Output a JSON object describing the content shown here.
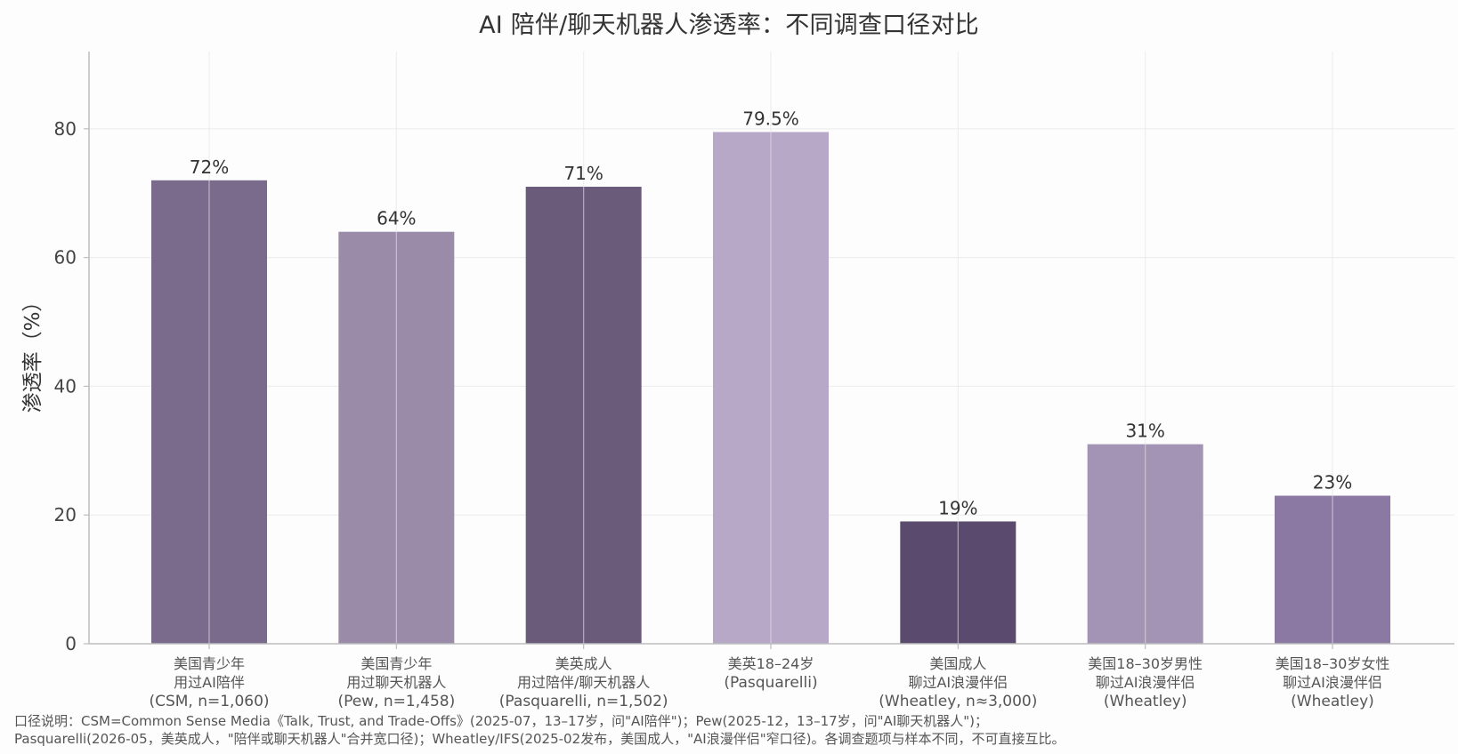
{
  "chart_data": {
    "type": "bar",
    "title": "AI 陪伴/聊天机器人渗透率：不同调查口径对比",
    "xlabel": "",
    "ylabel": "渗透率（%）",
    "ylim": [
      0,
      92
    ],
    "yticks": [
      0,
      20,
      40,
      60,
      80
    ],
    "grid": true,
    "categories": [
      [
        "美国青少年",
        "用过AI陪伴",
        "(CSM, n=1,060)"
      ],
      [
        "美国青少年",
        "用过聊天机器人",
        "(Pew, n=1,458)"
      ],
      [
        "美英成人",
        "用过陪伴/聊天机器人",
        "(Pasquarelli, n=1,502)"
      ],
      [
        "美英18–24岁",
        "(Pasquarelli)"
      ],
      [
        "美国成人",
        "聊过AI浪漫伴侣",
        "(Wheatley, n≈3,000)"
      ],
      [
        "美国18–30岁男性",
        "聊过AI浪漫伴侣",
        "(Wheatley)"
      ],
      [
        "美国18–30岁女性",
        "聊过AI浪漫伴侣",
        "(Wheatley)"
      ]
    ],
    "values": [
      72,
      64,
      71,
      79.5,
      19,
      31,
      23
    ],
    "value_labels": [
      "72%",
      "64%",
      "71%",
      "79.5%",
      "19%",
      "31%",
      "23%"
    ],
    "colors": [
      "#7a6b8c",
      "#9a8ca8",
      "#6b5b7b",
      "#b7a8c8",
      "#5a4a6e",
      "#a393b4",
      "#8b79a3"
    ]
  },
  "footnote": {
    "line1": "口径说明：CSM=Common Sense Media《Talk, Trust, and Trade-Offs》(2025-07，13–17岁，问\"AI陪伴\")；Pew(2025-12，13–17岁，问\"AI聊天机器人\")；",
    "line2": "Pasquarelli(2026-05，美英成人，\"陪伴或聊天机器人\"合并宽口径)；Wheatley/IFS(2025-02发布，美国成人，\"AI浪漫伴侣\"窄口径)。各调查题项与样本不同，不可直接互比。"
  },
  "style": {
    "axis_color": "#bdbdbd",
    "grid_color": "#eeeeee",
    "tick_text_color": "#444444",
    "label_text_color": "#333333",
    "category_text_color": "#555555"
  }
}
